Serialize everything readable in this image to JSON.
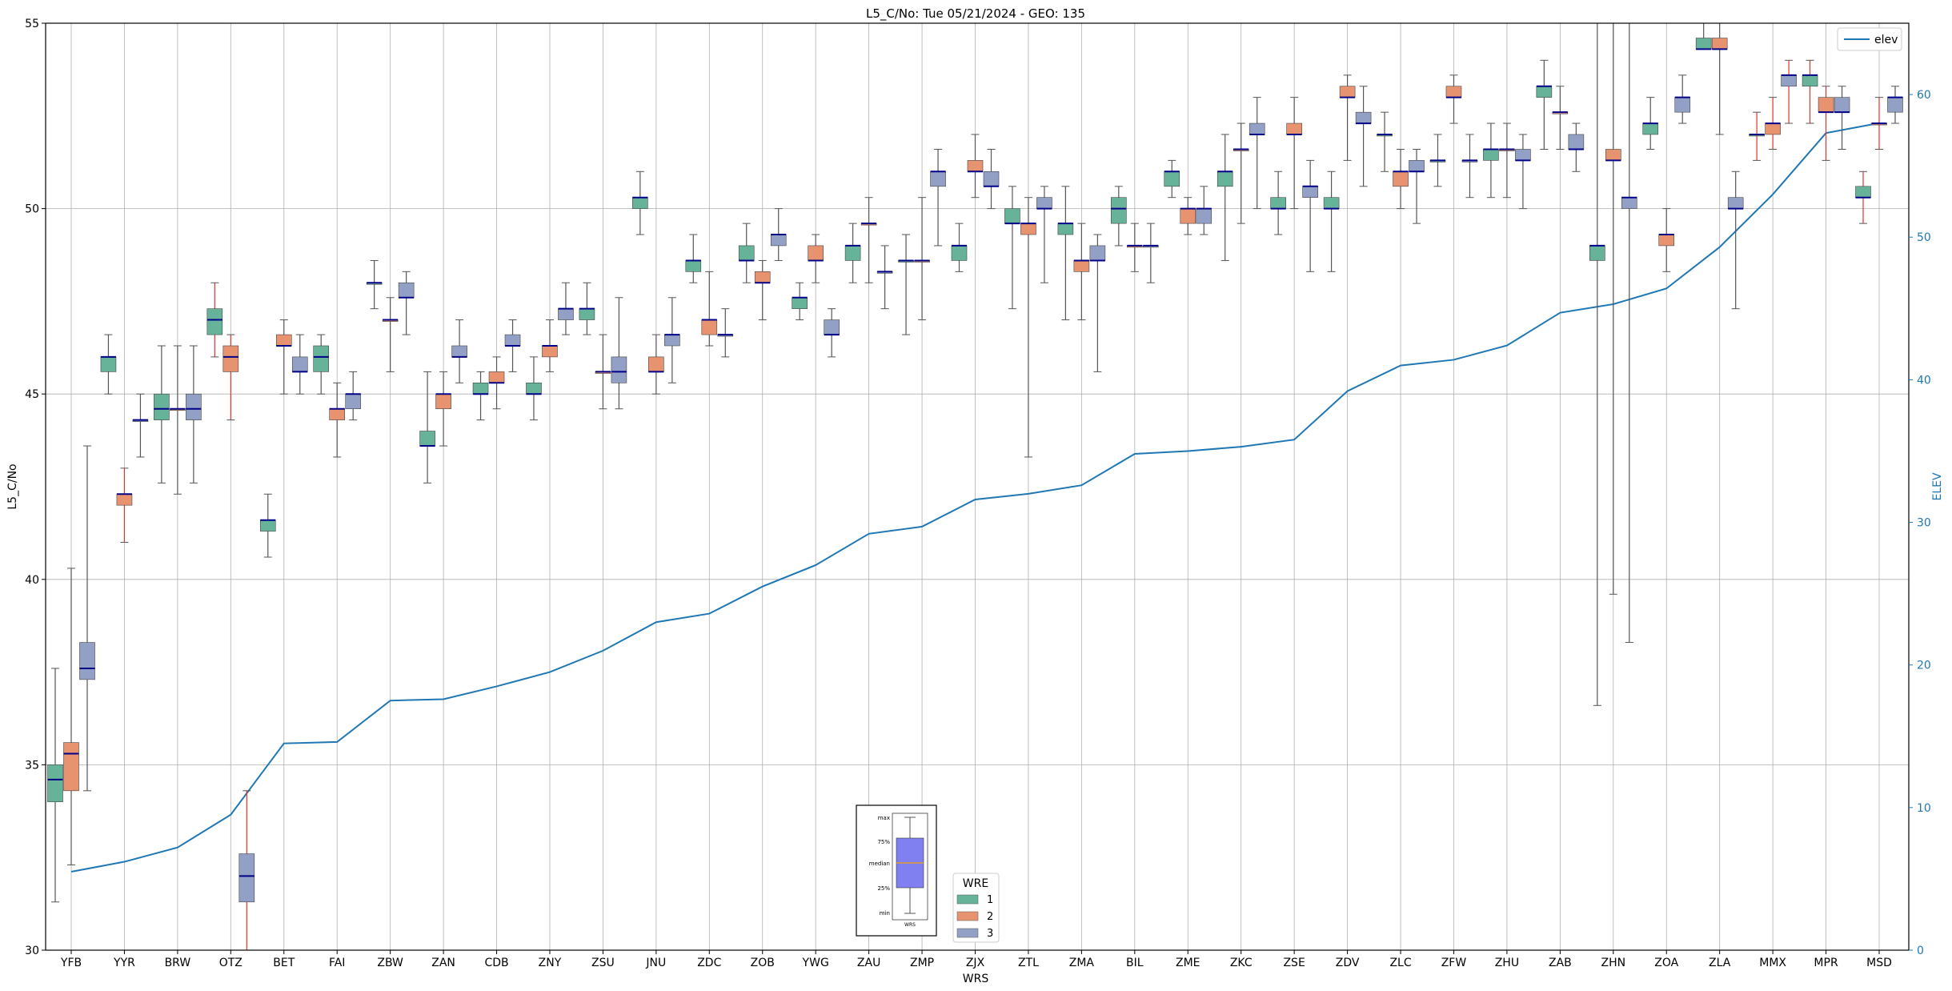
{
  "chart_data": {
    "type": "box",
    "title": "L5_C/No: Tue 05/21/2024 - GEO: 135",
    "xlabel": "WRS",
    "ylabel": "L5_C/No",
    "y2label": "ELEV",
    "ylim": [
      30,
      55
    ],
    "y2lim": [
      0,
      65
    ],
    "yticks": [
      30,
      35,
      40,
      45,
      50,
      55
    ],
    "y2ticks": [
      0,
      10,
      20,
      30,
      40,
      50,
      60
    ],
    "grid": true,
    "categories": [
      "YFB",
      "YYR",
      "BRW",
      "OTZ",
      "BET",
      "FAI",
      "ZBW",
      "ZAN",
      "CDB",
      "ZNY",
      "ZSU",
      "JNU",
      "ZDC",
      "ZOB",
      "YWG",
      "ZAU",
      "ZMP",
      "ZJX",
      "ZTL",
      "ZMA",
      "BIL",
      "ZME",
      "ZKC",
      "ZSE",
      "ZDV",
      "ZLC",
      "ZFW",
      "ZHU",
      "ZAB",
      "ZHN",
      "ZOA",
      "ZLA",
      "MMX",
      "MPR",
      "MSD"
    ],
    "series_colors": {
      "1": "#66b39a",
      "2": "#e8936f",
      "3": "#93a0c6"
    },
    "median_color": "#000088",
    "whisker_red": "#e8312b",
    "boxes": [
      {
        "cat": "YFB",
        "wre": "1",
        "min": 31.3,
        "q1": 34.0,
        "med": 34.6,
        "q3": 35.0,
        "max": 37.6
      },
      {
        "cat": "YFB",
        "wre": "2",
        "min": 32.3,
        "q1": 34.3,
        "med": 35.3,
        "q3": 35.6,
        "max": 40.3
      },
      {
        "cat": "YFB",
        "wre": "3",
        "min": 34.3,
        "q1": 37.3,
        "med": 37.6,
        "q3": 38.3,
        "max": 43.6
      },
      {
        "cat": "YYR",
        "wre": "1",
        "min": 45.0,
        "q1": 45.6,
        "med": 46.0,
        "q3": 46.0,
        "max": 46.6
      },
      {
        "cat": "YYR",
        "wre": "2",
        "min": 41.0,
        "q1": 42.0,
        "med": 42.3,
        "q3": 42.3,
        "max": 43.0,
        "red": true
      },
      {
        "cat": "YYR",
        "wre": "3",
        "min": 43.3,
        "q1": 44.3,
        "med": 44.3,
        "q3": 44.3,
        "max": 45.0
      },
      {
        "cat": "BRW",
        "wre": "1",
        "min": 42.6,
        "q1": 44.3,
        "med": 44.6,
        "q3": 45.0,
        "max": 46.3
      },
      {
        "cat": "BRW",
        "wre": "2",
        "min": 42.3,
        "q1": 44.6,
        "med": 44.6,
        "q3": 44.6,
        "max": 46.3
      },
      {
        "cat": "BRW",
        "wre": "3",
        "min": 42.6,
        "q1": 44.3,
        "med": 44.6,
        "q3": 45.0,
        "max": 46.3
      },
      {
        "cat": "OTZ",
        "wre": "1",
        "min": 46.0,
        "q1": 46.6,
        "med": 47.0,
        "q3": 47.3,
        "max": 48.0,
        "red": true
      },
      {
        "cat": "OTZ",
        "wre": "2",
        "min": 44.3,
        "q1": 45.6,
        "med": 46.0,
        "q3": 46.3,
        "max": 46.6,
        "red": true
      },
      {
        "cat": "OTZ",
        "wre": "3",
        "min": 30.0,
        "q1": 31.3,
        "med": 32.0,
        "q3": 32.6,
        "max": 34.3,
        "red": true
      },
      {
        "cat": "BET",
        "wre": "1",
        "min": 40.6,
        "q1": 41.3,
        "med": 41.6,
        "q3": 41.6,
        "max": 42.3
      },
      {
        "cat": "BET",
        "wre": "2",
        "min": 45.0,
        "q1": 46.3,
        "med": 46.3,
        "q3": 46.6,
        "max": 47.0
      },
      {
        "cat": "BET",
        "wre": "3",
        "min": 45.0,
        "q1": 45.6,
        "med": 45.6,
        "q3": 46.0,
        "max": 46.6
      },
      {
        "cat": "FAI",
        "wre": "1",
        "min": 45.0,
        "q1": 45.6,
        "med": 46.0,
        "q3": 46.3,
        "max": 46.6
      },
      {
        "cat": "FAI",
        "wre": "2",
        "min": 43.3,
        "q1": 44.3,
        "med": 44.6,
        "q3": 44.6,
        "max": 45.3
      },
      {
        "cat": "FAI",
        "wre": "3",
        "min": 44.3,
        "q1": 44.6,
        "med": 45.0,
        "q3": 45.0,
        "max": 45.6
      },
      {
        "cat": "ZBW",
        "wre": "1",
        "min": 47.3,
        "q1": 48.0,
        "med": 48.0,
        "q3": 48.0,
        "max": 48.6
      },
      {
        "cat": "ZBW",
        "wre": "2",
        "min": 45.6,
        "q1": 47.0,
        "med": 47.0,
        "q3": 47.0,
        "max": 47.6
      },
      {
        "cat": "ZBW",
        "wre": "3",
        "min": 46.6,
        "q1": 47.6,
        "med": 47.6,
        "q3": 48.0,
        "max": 48.3
      },
      {
        "cat": "ZAN",
        "wre": "1",
        "min": 42.6,
        "q1": 43.6,
        "med": 43.6,
        "q3": 44.0,
        "max": 45.6
      },
      {
        "cat": "ZAN",
        "wre": "2",
        "min": 43.6,
        "q1": 44.6,
        "med": 45.0,
        "q3": 45.0,
        "max": 45.6
      },
      {
        "cat": "ZAN",
        "wre": "3",
        "min": 45.3,
        "q1": 46.0,
        "med": 46.0,
        "q3": 46.3,
        "max": 47.0
      },
      {
        "cat": "CDB",
        "wre": "1",
        "min": 44.3,
        "q1": 45.0,
        "med": 45.0,
        "q3": 45.3,
        "max": 45.6
      },
      {
        "cat": "CDB",
        "wre": "2",
        "min": 44.6,
        "q1": 45.3,
        "med": 45.3,
        "q3": 45.6,
        "max": 46.0
      },
      {
        "cat": "CDB",
        "wre": "3",
        "min": 45.6,
        "q1": 46.3,
        "med": 46.3,
        "q3": 46.6,
        "max": 47.0
      },
      {
        "cat": "ZNY",
        "wre": "1",
        "min": 44.3,
        "q1": 45.0,
        "med": 45.0,
        "q3": 45.3,
        "max": 46.0
      },
      {
        "cat": "ZNY",
        "wre": "2",
        "min": 45.6,
        "q1": 46.0,
        "med": 46.3,
        "q3": 46.3,
        "max": 47.0
      },
      {
        "cat": "ZNY",
        "wre": "3",
        "min": 46.6,
        "q1": 47.0,
        "med": 47.3,
        "q3": 47.3,
        "max": 48.0
      },
      {
        "cat": "ZSU",
        "wre": "1",
        "min": 46.6,
        "q1": 47.0,
        "med": 47.3,
        "q3": 47.3,
        "max": 48.0
      },
      {
        "cat": "ZSU",
        "wre": "2",
        "min": 44.6,
        "q1": 45.6,
        "med": 45.6,
        "q3": 45.6,
        "max": 46.6
      },
      {
        "cat": "ZSU",
        "wre": "3",
        "min": 44.6,
        "q1": 45.3,
        "med": 45.6,
        "q3": 46.0,
        "max": 47.6
      },
      {
        "cat": "JNU",
        "wre": "1",
        "min": 49.3,
        "q1": 50.0,
        "med": 50.3,
        "q3": 50.3,
        "max": 51.0
      },
      {
        "cat": "JNU",
        "wre": "2",
        "min": 45.0,
        "q1": 45.6,
        "med": 45.6,
        "q3": 46.0,
        "max": 46.6
      },
      {
        "cat": "JNU",
        "wre": "3",
        "min": 45.3,
        "q1": 46.3,
        "med": 46.6,
        "q3": 46.6,
        "max": 47.6
      },
      {
        "cat": "ZDC",
        "wre": "1",
        "min": 48.0,
        "q1": 48.3,
        "med": 48.6,
        "q3": 48.6,
        "max": 49.3
      },
      {
        "cat": "ZDC",
        "wre": "2",
        "min": 46.3,
        "q1": 46.6,
        "med": 47.0,
        "q3": 47.0,
        "max": 48.3
      },
      {
        "cat": "ZDC",
        "wre": "3",
        "min": 46.0,
        "q1": 46.6,
        "med": 46.6,
        "q3": 46.6,
        "max": 47.3
      },
      {
        "cat": "ZOB",
        "wre": "1",
        "min": 48.0,
        "q1": 48.6,
        "med": 48.6,
        "q3": 49.0,
        "max": 49.6
      },
      {
        "cat": "ZOB",
        "wre": "2",
        "min": 47.0,
        "q1": 48.0,
        "med": 48.0,
        "q3": 48.3,
        "max": 48.6
      },
      {
        "cat": "ZOB",
        "wre": "3",
        "min": 48.6,
        "q1": 49.0,
        "med": 49.3,
        "q3": 49.3,
        "max": 50.0
      },
      {
        "cat": "YWG",
        "wre": "1",
        "min": 47.0,
        "q1": 47.3,
        "med": 47.6,
        "q3": 47.6,
        "max": 48.0
      },
      {
        "cat": "YWG",
        "wre": "2",
        "min": 48.0,
        "q1": 48.6,
        "med": 48.6,
        "q3": 49.0,
        "max": 49.3
      },
      {
        "cat": "YWG",
        "wre": "3",
        "min": 46.0,
        "q1": 46.6,
        "med": 46.6,
        "q3": 47.0,
        "max": 47.3
      },
      {
        "cat": "ZAU",
        "wre": "1",
        "min": 48.0,
        "q1": 48.6,
        "med": 49.0,
        "q3": 49.0,
        "max": 49.6
      },
      {
        "cat": "ZAU",
        "wre": "2",
        "min": 48.0,
        "q1": 49.6,
        "med": 49.6,
        "q3": 49.6,
        "max": 50.3
      },
      {
        "cat": "ZAU",
        "wre": "3",
        "min": 47.3,
        "q1": 48.3,
        "med": 48.3,
        "q3": 48.3,
        "max": 49.0
      },
      {
        "cat": "ZMP",
        "wre": "1",
        "min": 46.6,
        "q1": 48.6,
        "med": 48.6,
        "q3": 48.6,
        "max": 49.3
      },
      {
        "cat": "ZMP",
        "wre": "2",
        "min": 47.0,
        "q1": 48.6,
        "med": 48.6,
        "q3": 48.6,
        "max": 50.3
      },
      {
        "cat": "ZMP",
        "wre": "3",
        "min": 49.0,
        "q1": 50.6,
        "med": 51.0,
        "q3": 51.0,
        "max": 51.6
      },
      {
        "cat": "ZJX",
        "wre": "1",
        "min": 48.3,
        "q1": 48.6,
        "med": 49.0,
        "q3": 49.0,
        "max": 49.6
      },
      {
        "cat": "ZJX",
        "wre": "2",
        "min": 50.3,
        "q1": 51.0,
        "med": 51.0,
        "q3": 51.3,
        "max": 52.0
      },
      {
        "cat": "ZJX",
        "wre": "3",
        "min": 50.0,
        "q1": 50.6,
        "med": 50.6,
        "q3": 51.0,
        "max": 51.6
      },
      {
        "cat": "ZTL",
        "wre": "1",
        "min": 47.3,
        "q1": 49.6,
        "med": 49.6,
        "q3": 50.0,
        "max": 50.6
      },
      {
        "cat": "ZTL",
        "wre": "2",
        "min": 43.3,
        "q1": 49.3,
        "med": 49.6,
        "q3": 49.6,
        "max": 50.3
      },
      {
        "cat": "ZTL",
        "wre": "3",
        "min": 48.0,
        "q1": 50.0,
        "med": 50.0,
        "q3": 50.3,
        "max": 50.6
      },
      {
        "cat": "ZMA",
        "wre": "1",
        "min": 47.0,
        "q1": 49.3,
        "med": 49.6,
        "q3": 49.6,
        "max": 50.6
      },
      {
        "cat": "ZMA",
        "wre": "2",
        "min": 47.0,
        "q1": 48.3,
        "med": 48.6,
        "q3": 48.6,
        "max": 49.6
      },
      {
        "cat": "ZMA",
        "wre": "3",
        "min": 45.6,
        "q1": 48.6,
        "med": 48.6,
        "q3": 49.0,
        "max": 49.3
      },
      {
        "cat": "BIL",
        "wre": "1",
        "min": 49.0,
        "q1": 49.6,
        "med": 50.0,
        "q3": 50.3,
        "max": 50.6
      },
      {
        "cat": "BIL",
        "wre": "2",
        "min": 48.3,
        "q1": 49.0,
        "med": 49.0,
        "q3": 49.0,
        "max": 49.6
      },
      {
        "cat": "BIL",
        "wre": "3",
        "min": 48.0,
        "q1": 49.0,
        "med": 49.0,
        "q3": 49.0,
        "max": 49.6
      },
      {
        "cat": "ZME",
        "wre": "1",
        "min": 50.3,
        "q1": 50.6,
        "med": 51.0,
        "q3": 51.0,
        "max": 51.3
      },
      {
        "cat": "ZME",
        "wre": "2",
        "min": 49.3,
        "q1": 49.6,
        "med": 50.0,
        "q3": 50.0,
        "max": 50.3
      },
      {
        "cat": "ZME",
        "wre": "3",
        "min": 49.3,
        "q1": 49.6,
        "med": 50.0,
        "q3": 50.0,
        "max": 50.6
      },
      {
        "cat": "ZKC",
        "wre": "1",
        "min": 48.6,
        "q1": 50.6,
        "med": 51.0,
        "q3": 51.0,
        "max": 52.0
      },
      {
        "cat": "ZKC",
        "wre": "2",
        "min": 49.6,
        "q1": 51.6,
        "med": 51.6,
        "q3": 51.6,
        "max": 52.3
      },
      {
        "cat": "ZKC",
        "wre": "3",
        "min": 50.0,
        "q1": 52.0,
        "med": 52.0,
        "q3": 52.3,
        "max": 53.0
      },
      {
        "cat": "ZSE",
        "wre": "1",
        "min": 49.3,
        "q1": 50.0,
        "med": 50.0,
        "q3": 50.3,
        "max": 51.0
      },
      {
        "cat": "ZSE",
        "wre": "2",
        "min": 50.0,
        "q1": 52.0,
        "med": 52.0,
        "q3": 52.3,
        "max": 53.0
      },
      {
        "cat": "ZSE",
        "wre": "3",
        "min": 48.3,
        "q1": 50.3,
        "med": 50.6,
        "q3": 50.6,
        "max": 51.3
      },
      {
        "cat": "ZDV",
        "wre": "1",
        "min": 48.3,
        "q1": 50.0,
        "med": 50.0,
        "q3": 50.3,
        "max": 51.0
      },
      {
        "cat": "ZDV",
        "wre": "2",
        "min": 51.3,
        "q1": 53.0,
        "med": 53.0,
        "q3": 53.3,
        "max": 53.6
      },
      {
        "cat": "ZDV",
        "wre": "3",
        "min": 50.6,
        "q1": 52.3,
        "med": 52.3,
        "q3": 52.6,
        "max": 53.3
      },
      {
        "cat": "ZLC",
        "wre": "1",
        "min": 51.0,
        "q1": 52.0,
        "med": 52.0,
        "q3": 52.0,
        "max": 52.6
      },
      {
        "cat": "ZLC",
        "wre": "2",
        "min": 50.0,
        "q1": 50.6,
        "med": 51.0,
        "q3": 51.0,
        "max": 51.6
      },
      {
        "cat": "ZLC",
        "wre": "3",
        "min": 49.6,
        "q1": 51.0,
        "med": 51.0,
        "q3": 51.3,
        "max": 51.6
      },
      {
        "cat": "ZFW",
        "wre": "1",
        "min": 50.6,
        "q1": 51.3,
        "med": 51.3,
        "q3": 51.3,
        "max": 52.0
      },
      {
        "cat": "ZFW",
        "wre": "2",
        "min": 52.3,
        "q1": 53.0,
        "med": 53.0,
        "q3": 53.3,
        "max": 53.6
      },
      {
        "cat": "ZFW",
        "wre": "3",
        "min": 50.3,
        "q1": 51.3,
        "med": 51.3,
        "q3": 51.3,
        "max": 52.0
      },
      {
        "cat": "ZHU",
        "wre": "1",
        "min": 50.3,
        "q1": 51.3,
        "med": 51.6,
        "q3": 51.6,
        "max": 52.3
      },
      {
        "cat": "ZHU",
        "wre": "2",
        "min": 50.3,
        "q1": 51.6,
        "med": 51.6,
        "q3": 51.6,
        "max": 52.3
      },
      {
        "cat": "ZHU",
        "wre": "3",
        "min": 50.0,
        "q1": 51.3,
        "med": 51.3,
        "q3": 51.6,
        "max": 52.0
      },
      {
        "cat": "ZAB",
        "wre": "1",
        "min": 51.6,
        "q1": 53.0,
        "med": 53.3,
        "q3": 53.3,
        "max": 54.0
      },
      {
        "cat": "ZAB",
        "wre": "2",
        "min": 51.6,
        "q1": 52.6,
        "med": 52.6,
        "q3": 52.6,
        "max": 53.3
      },
      {
        "cat": "ZAB",
        "wre": "3",
        "min": 51.0,
        "q1": 51.6,
        "med": 51.6,
        "q3": 52.0,
        "max": 52.3
      },
      {
        "cat": "ZHN",
        "wre": "1",
        "min": 36.6,
        "q1": 48.6,
        "med": 49.0,
        "q3": 49.0,
        "max": 55.0
      },
      {
        "cat": "ZHN",
        "wre": "2",
        "min": 39.6,
        "q1": 51.3,
        "med": 51.3,
        "q3": 51.6,
        "max": 55.0
      },
      {
        "cat": "ZHN",
        "wre": "3",
        "min": 38.3,
        "q1": 50.0,
        "med": 50.3,
        "q3": 50.3,
        "max": 55.0
      },
      {
        "cat": "ZOA",
        "wre": "1",
        "min": 51.6,
        "q1": 52.0,
        "med": 52.3,
        "q3": 52.3,
        "max": 53.0
      },
      {
        "cat": "ZOA",
        "wre": "2",
        "min": 48.3,
        "q1": 49.0,
        "med": 49.3,
        "q3": 49.3,
        "max": 50.0
      },
      {
        "cat": "ZOA",
        "wre": "3",
        "min": 52.3,
        "q1": 52.6,
        "med": 53.0,
        "q3": 53.0,
        "max": 53.6
      },
      {
        "cat": "ZLA",
        "wre": "1",
        "min": 54.3,
        "q1": 54.3,
        "med": 54.3,
        "q3": 54.6,
        "max": 55.0
      },
      {
        "cat": "ZLA",
        "wre": "2",
        "min": 52.0,
        "q1": 54.3,
        "med": 54.3,
        "q3": 54.6,
        "max": 55.0
      },
      {
        "cat": "ZLA",
        "wre": "3",
        "min": 47.3,
        "q1": 50.0,
        "med": 50.0,
        "q3": 50.3,
        "max": 51.0
      },
      {
        "cat": "MMX",
        "wre": "1",
        "min": 51.3,
        "q1": 52.0,
        "med": 52.0,
        "q3": 52.0,
        "max": 52.6,
        "red": true
      },
      {
        "cat": "MMX",
        "wre": "2",
        "min": 51.6,
        "q1": 52.0,
        "med": 52.3,
        "q3": 52.3,
        "max": 53.0,
        "red": true
      },
      {
        "cat": "MMX",
        "wre": "3",
        "min": 52.3,
        "q1": 53.3,
        "med": 53.6,
        "q3": 53.6,
        "max": 54.0,
        "red": true
      },
      {
        "cat": "MPR",
        "wre": "1",
        "min": 52.3,
        "q1": 53.3,
        "med": 53.6,
        "q3": 53.6,
        "max": 54.0,
        "red": true
      },
      {
        "cat": "MPR",
        "wre": "2",
        "min": 51.3,
        "q1": 52.6,
        "med": 52.6,
        "q3": 53.0,
        "max": 53.3,
        "red": true
      },
      {
        "cat": "MPR",
        "wre": "3",
        "min": 51.6,
        "q1": 52.6,
        "med": 52.6,
        "q3": 53.0,
        "max": 53.3
      },
      {
        "cat": "MSD",
        "wre": "1",
        "min": 49.6,
        "q1": 50.3,
        "med": 50.3,
        "q3": 50.6,
        "max": 51.0,
        "red": true
      },
      {
        "cat": "MSD",
        "wre": "2",
        "min": 51.6,
        "q1": 52.3,
        "med": 52.3,
        "q3": 52.3,
        "max": 53.0,
        "red": true
      },
      {
        "cat": "MSD",
        "wre": "3",
        "min": 52.3,
        "q1": 52.6,
        "med": 53.0,
        "q3": 53.0,
        "max": 53.3
      }
    ],
    "elev_series": {
      "name": "elev",
      "color": "#1f77b4",
      "values": [
        5.5,
        6.2,
        7.2,
        9.5,
        14.5,
        14.6,
        17.5,
        17.6,
        18.5,
        19.5,
        21.0,
        23.0,
        23.6,
        25.5,
        27.0,
        29.2,
        29.7,
        31.6,
        32.0,
        32.6,
        34.8,
        35.0,
        35.3,
        35.8,
        39.2,
        41.0,
        41.4,
        42.4,
        44.7,
        45.3,
        46.4,
        49.3,
        53.0,
        57.3,
        58.0
      ]
    },
    "legend": {
      "title": "WRE",
      "placement": "bottom-center",
      "entries": [
        {
          "label": "1",
          "color": "#66b39a"
        },
        {
          "label": "2",
          "color": "#e8936f"
        },
        {
          "label": "3",
          "color": "#93a0c6"
        }
      ]
    },
    "line_legend": {
      "label": "elev",
      "placement": "top-right"
    },
    "inset_key": {
      "labels": [
        "max",
        "75%",
        "median",
        "25%",
        "min"
      ],
      "xlabel": "WRS",
      "box_color": "#8080f0",
      "median_color": "#f4a300"
    }
  }
}
